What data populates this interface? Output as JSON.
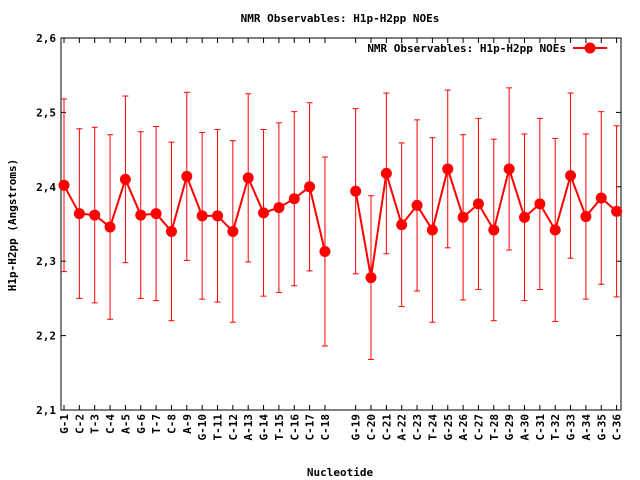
{
  "chart_data": {
    "type": "line",
    "title": "NMR Observables: H1p-H2pp NOEs",
    "xlabel": "Nucleotide",
    "ylabel": "H1p-H2pp (Angstroms)",
    "ylim": [
      2.1,
      2.6
    ],
    "yticks": [
      "2,1",
      "2,2",
      "2,3",
      "2,4",
      "2,5",
      "2,6"
    ],
    "ytick_values": [
      2.1,
      2.2,
      2.3,
      2.4,
      2.5,
      2.6
    ],
    "grid": false,
    "legend_position": "top-right",
    "series": [
      {
        "name": "NMR Observables: H1p-H2pp NOEs",
        "color": "#ff0000",
        "categories": [
          "G-1",
          "C-2",
          "T-3",
          "C-4",
          "A-5",
          "G-6",
          "T-7",
          "C-8",
          "A-9",
          "G-10",
          "T-11",
          "C-12",
          "A-13",
          "G-14",
          "T-15",
          "C-16",
          "C-17",
          "C-18",
          "G-19",
          "C-20",
          "C-21",
          "A-22",
          "C-23",
          "T-24",
          "G-25",
          "A-26",
          "C-27",
          "T-28",
          "G-29",
          "A-30",
          "C-31",
          "T-32",
          "G-33",
          "A-34",
          "G-35",
          "C-36"
        ],
        "segments": [
          [
            0,
            17
          ],
          [
            18,
            35
          ]
        ],
        "values": [
          2.402,
          2.364,
          2.362,
          2.346,
          2.41,
          2.362,
          2.364,
          2.34,
          2.414,
          2.361,
          2.361,
          2.34,
          2.412,
          2.365,
          2.372,
          2.384,
          2.4,
          2.313,
          2.394,
          2.278,
          2.418,
          2.349,
          2.375,
          2.342,
          2.424,
          2.359,
          2.377,
          2.342,
          2.424,
          2.359,
          2.377,
          2.342,
          2.415,
          2.36,
          2.385,
          2.367
        ],
        "errors": [
          0.116,
          0.114,
          0.118,
          0.124,
          0.112,
          0.112,
          0.117,
          0.12,
          0.113,
          0.112,
          0.116,
          0.122,
          0.113,
          0.112,
          0.114,
          0.117,
          0.113,
          0.127,
          0.111,
          0.11,
          0.108,
          0.11,
          0.115,
          0.124,
          0.106,
          0.111,
          0.115,
          0.122,
          0.109,
          0.112,
          0.115,
          0.123,
          0.111,
          0.111,
          0.116,
          0.115
        ]
      }
    ]
  }
}
